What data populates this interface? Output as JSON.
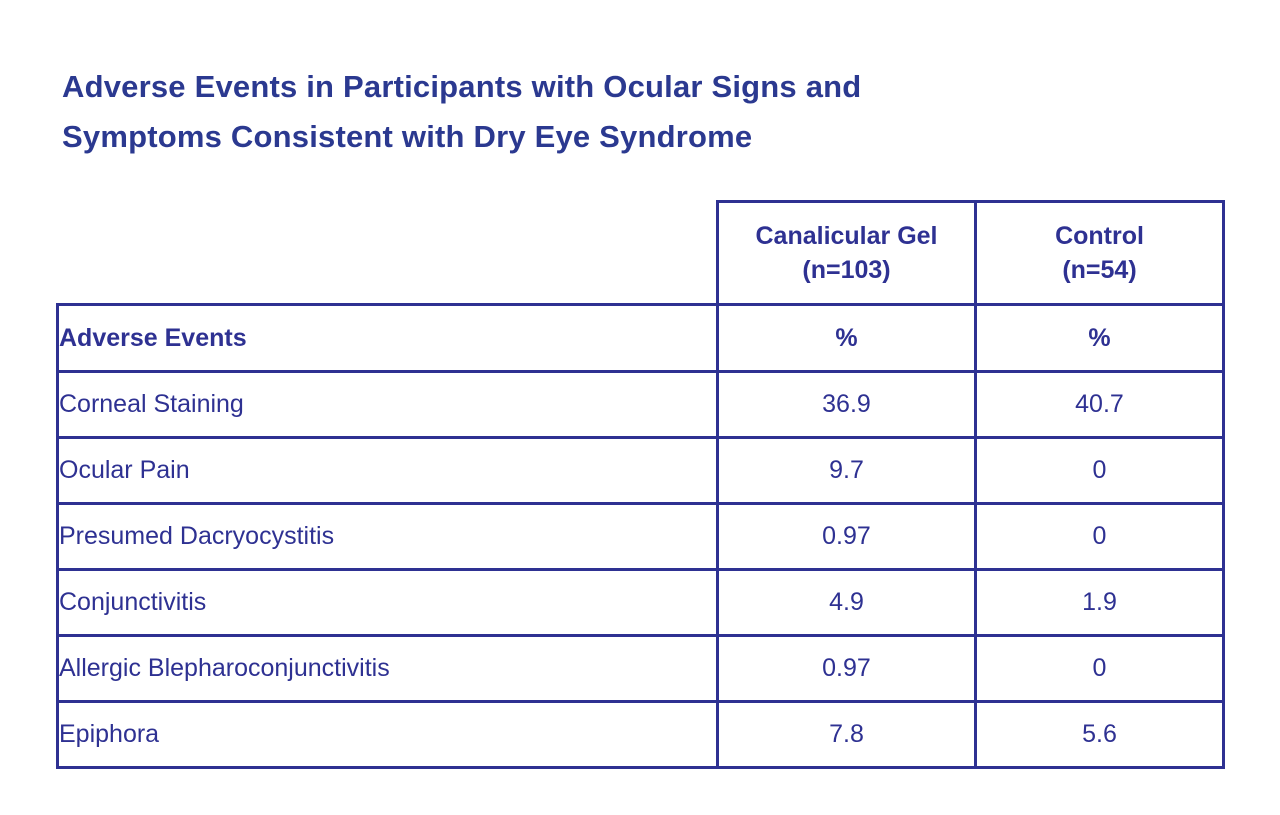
{
  "colors": {
    "brand_navy": "#2E3192",
    "title_navy": "#2B3990",
    "cell_background": "#FFFFFF",
    "page_background": "#FFFFFF"
  },
  "title": "Adverse Events in Participants with Ocular Signs and Symptoms Consistent with Dry Eye Syndrome",
  "table": {
    "group_headers": {
      "gel": {
        "line1": "Canalicular Gel",
        "line2": "(n=103)"
      },
      "control": {
        "line1": "Control",
        "line2": "(n=54)"
      }
    },
    "subheader": {
      "label": "Adverse Events",
      "gel_unit": "%",
      "control_unit": "%"
    }
  },
  "chart_data": {
    "type": "table",
    "title": "Adverse Events in Participants with Ocular Signs and Symptoms Consistent with Dry Eye Syndrome",
    "columns": [
      "Adverse Events",
      "Canalicular Gel (n=103) %",
      "Control (n=54) %"
    ],
    "rows": [
      [
        "Corneal Staining",
        36.9,
        40.7
      ],
      [
        "Ocular Pain",
        9.7,
        0
      ],
      [
        "Presumed Dacryocystitis",
        0.97,
        0
      ],
      [
        "Conjunctivitis",
        4.9,
        1.9
      ],
      [
        "Allergic Blepharoconjunctivitis",
        0.97,
        0
      ],
      [
        "Epiphora",
        7.8,
        5.6
      ]
    ]
  }
}
